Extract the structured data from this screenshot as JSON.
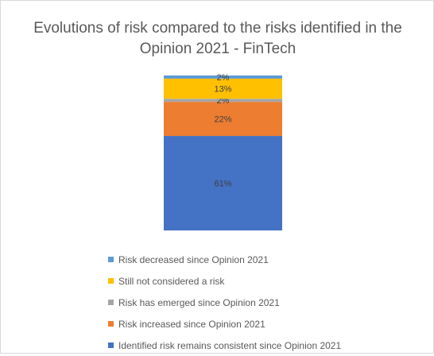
{
  "chart_data": {
    "type": "bar",
    "stacked": true,
    "title": "Evolutions of risk compared to the risks identified in the Opinion 2021 - FinTech",
    "categories": [
      ""
    ],
    "unit": "%",
    "series": [
      {
        "name": "Identified risk remains consistent since Opinion 2021",
        "values": [
          61
        ],
        "label": "61%",
        "color": "#4472c4"
      },
      {
        "name": "Risk increased since Opinion 2021",
        "values": [
          22
        ],
        "label": "22%",
        "color": "#ed7d31"
      },
      {
        "name": "Risk has emerged since Opinion 2021",
        "values": [
          2
        ],
        "label": "2%",
        "color": "#a5a5a5"
      },
      {
        "name": "Still not considered a risk",
        "values": [
          13
        ],
        "label": "13%",
        "color": "#ffc000"
      },
      {
        "name": "Risk decreased since Opinion 2021",
        "values": [
          2
        ],
        "label": "2%",
        "color": "#5b9bd5"
      }
    ],
    "legend": {
      "position": "bottom",
      "order": [
        "Risk decreased since Opinion 2021",
        "Still not considered a risk",
        "Risk has emerged since Opinion 2021",
        "Risk increased since Opinion 2021",
        "Identified risk remains consistent since Opinion 2021"
      ]
    },
    "ylim": [
      0,
      100
    ],
    "grid": false
  }
}
